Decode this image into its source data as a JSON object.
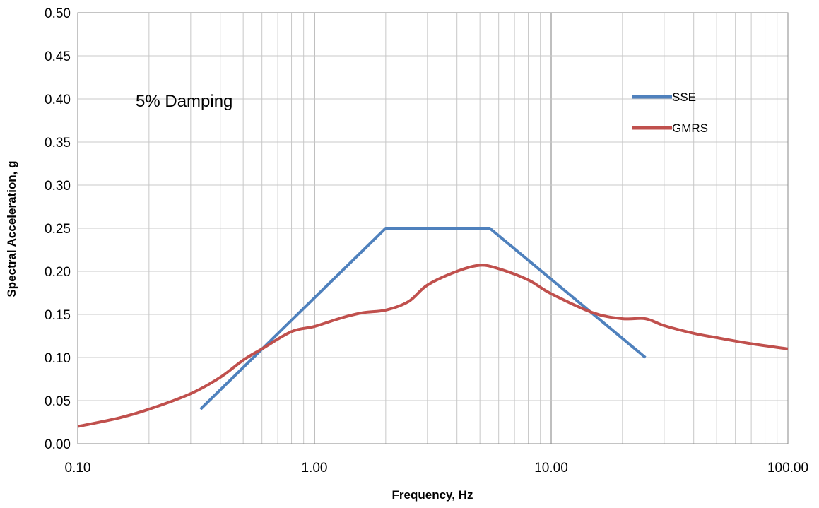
{
  "chart_data": {
    "type": "line",
    "xlabel": "Frequency, Hz",
    "ylabel": "Spectral Acceleration, g",
    "x_scale": "log",
    "xlim": [
      0.1,
      100
    ],
    "ylim": [
      0,
      0.5
    ],
    "x_ticks": [
      "0.10",
      "1.00",
      "10.00",
      "100.00"
    ],
    "y_ticks": [
      "0.00",
      "0.05",
      "0.10",
      "0.15",
      "0.20",
      "0.25",
      "0.30",
      "0.35",
      "0.40",
      "0.45",
      "0.50"
    ],
    "grid": true,
    "legend_position": "top-right",
    "annotation": "5% Damping",
    "series": [
      {
        "name": "SSE",
        "color": "#4f81bd",
        "x": [
          0.33,
          2.0,
          5.5,
          25.0
        ],
        "y": [
          0.04,
          0.25,
          0.25,
          0.1
        ]
      },
      {
        "name": "GMRS",
        "color": "#c0504d",
        "x": [
          0.1,
          0.15,
          0.2,
          0.3,
          0.4,
          0.5,
          0.6,
          0.8,
          1.0,
          1.3,
          1.6,
          2.0,
          2.5,
          3.0,
          4.0,
          5.0,
          6.0,
          8.0,
          10.0,
          15.0,
          20.0,
          25.0,
          30.0,
          40.0,
          50.0,
          70.0,
          100.0
        ],
        "y": [
          0.02,
          0.03,
          0.04,
          0.058,
          0.077,
          0.097,
          0.11,
          0.13,
          0.136,
          0.146,
          0.152,
          0.155,
          0.165,
          0.184,
          0.2,
          0.207,
          0.203,
          0.19,
          0.174,
          0.152,
          0.145,
          0.145,
          0.137,
          0.128,
          0.123,
          0.116,
          0.11
        ]
      }
    ]
  }
}
